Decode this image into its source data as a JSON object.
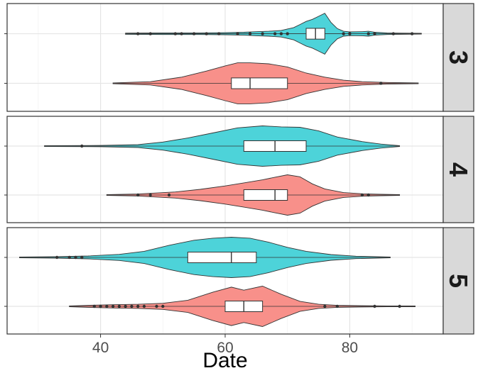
{
  "chart_data": {
    "type": "violin",
    "title": "",
    "xlabel": "Date",
    "ylabel": "",
    "xlim": [
      25,
      95
    ],
    "x_ticks": [
      40,
      60,
      80
    ],
    "grid": true,
    "legend": "none",
    "colors": {
      "top_violin": "#4dd3d9",
      "bottom_violin": "#f8908a",
      "panel_bg": "#ffffff",
      "grid_major": "#e5e5e5",
      "grid_minor": "#f2f2f2",
      "strip_bg": "#d9d9d9"
    },
    "panels": [
      {
        "facet_label": "3",
        "violins": [
          {
            "position": "top",
            "color": "#4dd3d9",
            "range": [
              44,
              91.5
            ],
            "box": {
              "q1": 73,
              "median": 74.5,
              "q3": 76
            },
            "density": [
              [
                44,
                0.03
              ],
              [
                50,
                0.04
              ],
              [
                56,
                0.04
              ],
              [
                60,
                0.05
              ],
              [
                63,
                0.07
              ],
              [
                65,
                0.1
              ],
              [
                67,
                0.12
              ],
              [
                69,
                0.16
              ],
              [
                71,
                0.3
              ],
              [
                72,
                0.45
              ],
              [
                73,
                0.6
              ],
              [
                74,
                0.7
              ],
              [
                75,
                0.85
              ],
              [
                76,
                1.0
              ],
              [
                77,
                0.55
              ],
              [
                78,
                0.25
              ],
              [
                79,
                0.12
              ],
              [
                80,
                0.09
              ],
              [
                82,
                0.1
              ],
              [
                83,
                0.12
              ],
              [
                84,
                0.07
              ],
              [
                86,
                0.04
              ],
              [
                88,
                0.03
              ],
              [
                91.5,
                0.02
              ]
            ],
            "outliers": [
              46,
              48,
              52,
              53,
              55,
              57,
              59,
              62,
              64,
              66,
              68,
              69,
              70,
              79,
              80,
              83,
              84,
              87,
              90
            ]
          },
          {
            "position": "bottom",
            "color": "#f8908a",
            "range": [
              42,
              91
            ],
            "box": {
              "q1": 61,
              "median": 64,
              "q3": 70
            },
            "density": [
              [
                42,
                0.02
              ],
              [
                48,
                0.08
              ],
              [
                53,
                0.3
              ],
              [
                57,
                0.6
              ],
              [
                60,
                0.85
              ],
              [
                62,
                1.0
              ],
              [
                64,
                1.0
              ],
              [
                67,
                0.95
              ],
              [
                70,
                0.8
              ],
              [
                73,
                0.5
              ],
              [
                76,
                0.3
              ],
              [
                79,
                0.15
              ],
              [
                82,
                0.08
              ],
              [
                86,
                0.04
              ],
              [
                91,
                0.02
              ]
            ],
            "outliers": [
              85
            ]
          }
        ]
      },
      {
        "facet_label": "4",
        "violins": [
          {
            "position": "top",
            "color": "#4dd3d9",
            "range": [
              31,
              88
            ],
            "box": {
              "q1": 63,
              "median": 68,
              "q3": 73
            },
            "density": [
              [
                31,
                0.02
              ],
              [
                40,
                0.03
              ],
              [
                46,
                0.07
              ],
              [
                50,
                0.2
              ],
              [
                54,
                0.4
              ],
              [
                58,
                0.65
              ],
              [
                62,
                0.9
              ],
              [
                66,
                1.0
              ],
              [
                69,
                0.95
              ],
              [
                72,
                0.93
              ],
              [
                75,
                0.75
              ],
              [
                78,
                0.45
              ],
              [
                82,
                0.22
              ],
              [
                85,
                0.1
              ],
              [
                88,
                0.02
              ]
            ],
            "outliers": [
              37
            ]
          },
          {
            "position": "bottom",
            "color": "#f8908a",
            "range": [
              41,
              88
            ],
            "box": {
              "q1": 63,
              "median": 68,
              "q3": 70
            },
            "density": [
              [
                41,
                0.02
              ],
              [
                46,
                0.05
              ],
              [
                52,
                0.15
              ],
              [
                56,
                0.28
              ],
              [
                60,
                0.45
              ],
              [
                63,
                0.6
              ],
              [
                66,
                0.75
              ],
              [
                68,
                0.88
              ],
              [
                70,
                1.0
              ],
              [
                72,
                0.9
              ],
              [
                74,
                0.55
              ],
              [
                76,
                0.3
              ],
              [
                79,
                0.12
              ],
              [
                82,
                0.06
              ],
              [
                85,
                0.04
              ],
              [
                88,
                0.02
              ]
            ],
            "outliers": [
              46,
              48,
              51,
              82,
              83
            ]
          }
        ]
      },
      {
        "facet_label": "5",
        "violins": [
          {
            "position": "top",
            "color": "#4dd3d9",
            "range": [
              27,
              86.5
            ],
            "box": {
              "q1": 54,
              "median": 61,
              "q3": 65
            },
            "density": [
              [
                27,
                0.02
              ],
              [
                33,
                0.04
              ],
              [
                38,
                0.07
              ],
              [
                43,
                0.15
              ],
              [
                47,
                0.3
              ],
              [
                51,
                0.6
              ],
              [
                55,
                0.85
              ],
              [
                58,
                0.95
              ],
              [
                61,
                1.0
              ],
              [
                64,
                0.95
              ],
              [
                67,
                0.75
              ],
              [
                70,
                0.5
              ],
              [
                73,
                0.3
              ],
              [
                77,
                0.14
              ],
              [
                81,
                0.06
              ],
              [
                86.5,
                0.02
              ]
            ],
            "outliers": [
              33,
              35,
              36,
              37
            ]
          },
          {
            "position": "bottom",
            "color": "#f8908a",
            "range": [
              35,
              90.5
            ],
            "box": {
              "q1": 60,
              "median": 63,
              "q3": 66
            },
            "density": [
              [
                35,
                0.02
              ],
              [
                39,
                0.06
              ],
              [
                42,
                0.08
              ],
              [
                46,
                0.1
              ],
              [
                50,
                0.15
              ],
              [
                54,
                0.3
              ],
              [
                58,
                0.7
              ],
              [
                61,
                0.95
              ],
              [
                63,
                0.8
              ],
              [
                66,
                1.0
              ],
              [
                69,
                0.6
              ],
              [
                72,
                0.25
              ],
              [
                75,
                0.1
              ],
              [
                78,
                0.05
              ],
              [
                82,
                0.03
              ],
              [
                86,
                0.02
              ],
              [
                90.5,
                0.02
              ]
            ],
            "outliers": [
              39,
              40,
              41,
              42,
              43,
              44,
              45,
              46,
              47,
              49,
              50,
              76,
              78,
              84,
              88
            ]
          }
        ]
      }
    ]
  }
}
